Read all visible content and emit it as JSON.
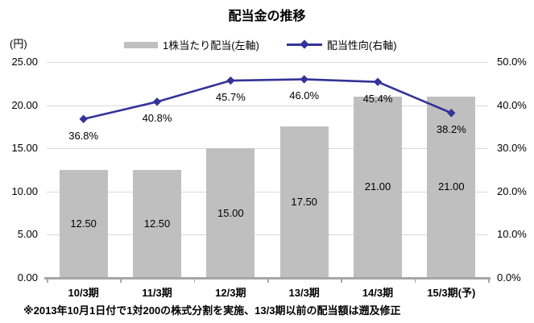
{
  "title": "配当金の推移",
  "unit_label": "(円)",
  "legend": [
    {
      "label": "1株当たり配当(左軸)",
      "type": "bar",
      "color": "#bfbfbf"
    },
    {
      "label": "配当性向(右軸)",
      "type": "line",
      "color": "#333399"
    }
  ],
  "footnote": "※2013年10月1日付で1対200の株式分割を実施、13/3期以前の配当額は遡及修正",
  "colors": {
    "bar": "#bfbfbf",
    "line": "#333399",
    "gridline": "#d9d9d9",
    "axis": "#a6a6a6",
    "text": "#000000"
  },
  "chart_data": {
    "type": "bar",
    "subtype": "combo-bar-line-dual-axis",
    "title": "配当金の推移",
    "categories": [
      "10/3期",
      "11/3期",
      "12/3期",
      "13/3期",
      "14/3期",
      "15/3期(予)"
    ],
    "series": [
      {
        "name": "1株当たり配当(左軸)",
        "type": "bar",
        "axis": "left",
        "values": [
          12.5,
          12.5,
          15.0,
          17.5,
          21.0,
          21.0
        ],
        "labels": [
          "12.50",
          "12.50",
          "15.00",
          "17.50",
          "21.00",
          "21.00"
        ],
        "color": "#bfbfbf"
      },
      {
        "name": "配当性向(右軸)",
        "type": "line",
        "axis": "right",
        "marker": "diamond",
        "values": [
          36.8,
          40.8,
          45.7,
          46.0,
          45.4,
          38.2
        ],
        "labels": [
          "36.8%",
          "40.8%",
          "45.7%",
          "46.0%",
          "45.4%",
          "38.2%"
        ],
        "color": "#333399"
      }
    ],
    "left_axis": {
      "unit": "(円)",
      "min": 0,
      "max": 25,
      "ticks": [
        "25.00",
        "20.00",
        "15.00",
        "10.00",
        "5.00",
        "0.00"
      ]
    },
    "right_axis": {
      "unit": "%",
      "min": 0,
      "max": 50,
      "ticks": [
        "50.0%",
        "40.0%",
        "30.0%",
        "20.0%",
        "10.0%",
        "0.0%"
      ]
    },
    "grid": true,
    "legend_position": "top"
  }
}
